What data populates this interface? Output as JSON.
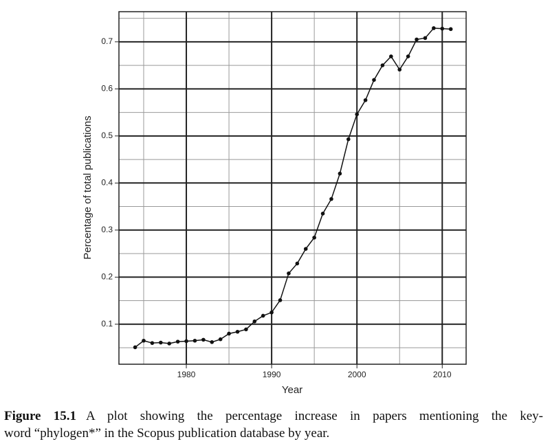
{
  "chart_data": {
    "type": "line",
    "x_label": "Year",
    "y_label": "Percentage of total publications",
    "x": [
      1974,
      1975,
      1976,
      1977,
      1978,
      1979,
      1980,
      1981,
      1982,
      1983,
      1984,
      1985,
      1986,
      1987,
      1988,
      1989,
      1990,
      1991,
      1992,
      1993,
      1994,
      1995,
      1996,
      1997,
      1998,
      1999,
      2000,
      2001,
      2002,
      2003,
      2004,
      2005,
      2006,
      2007,
      2008,
      2009,
      2010,
      2011
    ],
    "values": [
      0.051,
      0.065,
      0.06,
      0.061,
      0.059,
      0.063,
      0.064,
      0.065,
      0.067,
      0.062,
      0.068,
      0.08,
      0.084,
      0.089,
      0.106,
      0.118,
      0.125,
      0.151,
      0.208,
      0.229,
      0.26,
      0.284,
      0.335,
      0.366,
      0.42,
      0.493,
      0.546,
      0.576,
      0.619,
      0.65,
      0.669,
      0.641,
      0.669,
      0.705,
      0.708,
      0.729,
      0.728,
      0.727
    ],
    "color": "#111111",
    "xlim": [
      1972.1,
      2012.8
    ],
    "ylim": [
      0.015,
      0.764
    ],
    "xticks": [
      1980,
      1990,
      2000,
      2010
    ],
    "yticks": [
      0.1,
      0.2,
      0.3,
      0.4,
      0.5,
      0.6,
      0.7
    ],
    "x_minor_grid": [
      1975,
      1985,
      1995,
      2005
    ],
    "y_minor_grid": [
      0.05,
      0.15,
      0.25,
      0.35,
      0.45,
      0.55,
      0.65,
      0.75
    ],
    "grid": true
  },
  "caption": {
    "label": "Figure 15.1",
    "lines": [
      "A plot showing the percentage increase in papers mentioning the key-",
      "word “phylogen*” in the Scopus publication database by year."
    ]
  }
}
